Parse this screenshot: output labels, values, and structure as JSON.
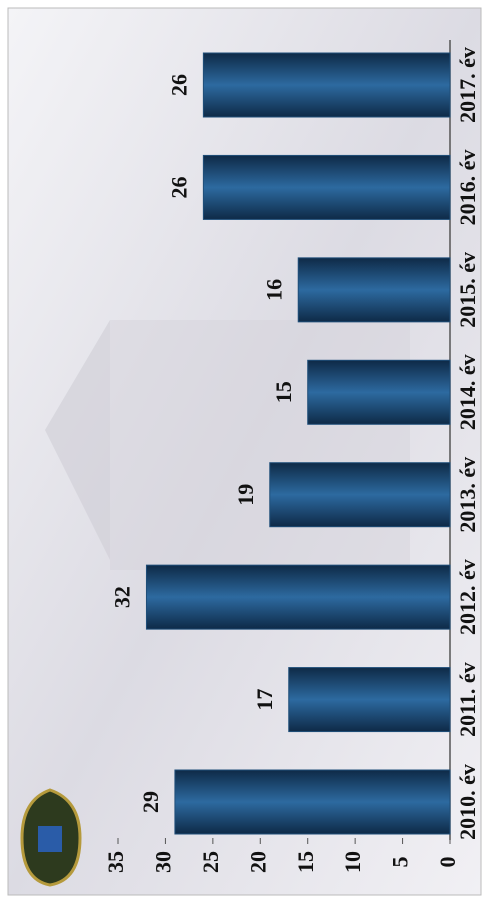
{
  "chart_data": {
    "type": "bar",
    "categories": [
      "2010. év",
      "2011. év",
      "2012. év",
      "2013. év",
      "2014. év",
      "2015. év",
      "2016. év",
      "2017. év"
    ],
    "values": [
      29,
      17,
      32,
      19,
      15,
      16,
      26,
      26
    ],
    "color": "#1f4e79",
    "ylim": [
      0,
      35
    ],
    "yticks": [
      0,
      5,
      10,
      15,
      20,
      25,
      30,
      35
    ]
  }
}
